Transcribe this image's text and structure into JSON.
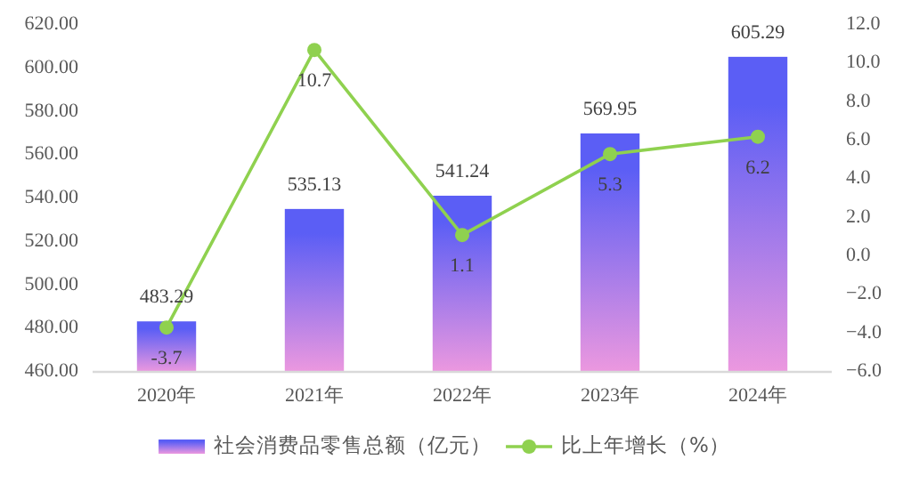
{
  "chart_data": {
    "type": "bar",
    "categories": [
      "2020年",
      "2021年",
      "2022年",
      "2023年",
      "2024年"
    ],
    "series": [
      {
        "name": "社会消费品零售总额（亿元）",
        "color": "#5b5ef5",
        "values": [
          483.29,
          535.13,
          541.24,
          569.95,
          605.29
        ]
      },
      {
        "name": "比上年增长（%）",
        "type": "line",
        "axis": "y2",
        "color": "#8fd14f",
        "values": [
          -3.7,
          10.7,
          1.1,
          5.3,
          6.2
        ]
      }
    ],
    "ylim": [
      460,
      620
    ],
    "yticks": [
      {
        "value": 460,
        "label": "460.00"
      },
      {
        "value": 480,
        "label": "480.00"
      },
      {
        "value": 500,
        "label": "500.00"
      },
      {
        "value": 520,
        "label": "520.00"
      },
      {
        "value": 540,
        "label": "540.00"
      },
      {
        "value": 560,
        "label": "560.00"
      },
      {
        "value": 580,
        "label": "580.00"
      },
      {
        "value": 600,
        "label": "600.00"
      },
      {
        "value": 620,
        "label": "620.00"
      }
    ],
    "y2lim": [
      -6,
      12
    ],
    "y2ticks": [
      {
        "value": -6,
        "label": "−6.0"
      },
      {
        "value": -4,
        "label": "−4.0"
      },
      {
        "value": -2,
        "label": "−2.0"
      },
      {
        "value": 0,
        "label": "0.0"
      },
      {
        "value": 2,
        "label": "2.0"
      },
      {
        "value": 4,
        "label": "4.0"
      },
      {
        "value": 6,
        "label": "6.0"
      },
      {
        "value": 8,
        "label": "8.0"
      },
      {
        "value": 10,
        "label": "10.0"
      },
      {
        "value": 12,
        "label": "12.0"
      }
    ],
    "data_labels": true,
    "legend": "bottom",
    "marker": "circle",
    "grid": false
  }
}
